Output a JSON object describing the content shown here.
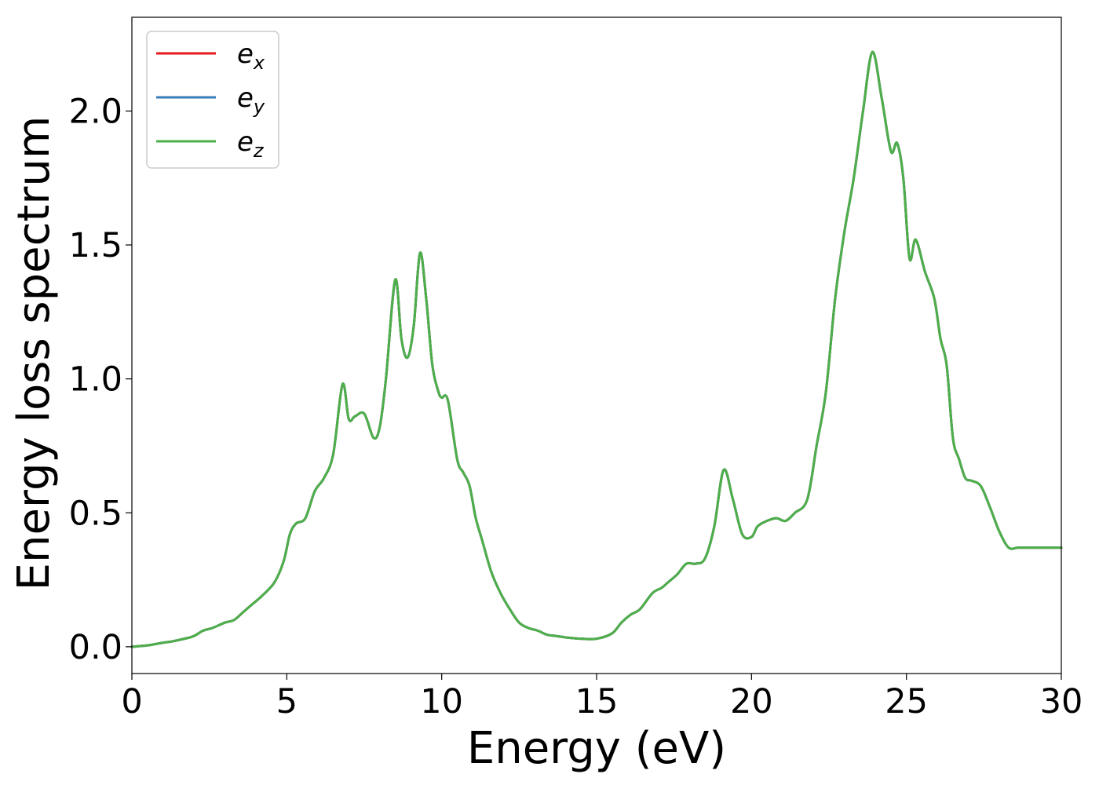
{
  "chart_data": {
    "type": "line",
    "title": "",
    "xlabel": "Energy (eV)",
    "ylabel": "Energy loss spectrum",
    "xlim": [
      0,
      30
    ],
    "ylim": [
      -0.1,
      2.35
    ],
    "xticks": [
      0,
      5,
      10,
      15,
      20,
      25,
      30
    ],
    "xtick_labels": [
      "0",
      "5",
      "10",
      "15",
      "20",
      "25",
      "30"
    ],
    "yticks": [
      0.0,
      0.5,
      1.0,
      1.5,
      2.0
    ],
    "ytick_labels": [
      "0.0",
      "0.5",
      "1.0",
      "1.5",
      "2.0"
    ],
    "grid": false,
    "legend_position": "top-left",
    "x": [
      0,
      0.5,
      1.0,
      1.3,
      1.7,
      2.0,
      2.3,
      2.6,
      3.0,
      3.3,
      3.6,
      3.9,
      4.2,
      4.6,
      4.9,
      5.1,
      5.3,
      5.6,
      5.9,
      6.2,
      6.5,
      6.8,
      7.0,
      7.2,
      7.5,
      7.8,
      8.0,
      8.2,
      8.5,
      8.7,
      8.9,
      9.1,
      9.3,
      9.5,
      9.7,
      9.9,
      10.0,
      10.2,
      10.5,
      10.7,
      10.9,
      11.1,
      11.3,
      11.6,
      11.9,
      12.2,
      12.5,
      12.8,
      13.1,
      13.4,
      13.7,
      14.0,
      14.5,
      15.0,
      15.5,
      15.8,
      16.1,
      16.4,
      16.8,
      17.1,
      17.3,
      17.6,
      17.9,
      18.2,
      18.5,
      18.8,
      19.1,
      19.4,
      19.7,
      20.0,
      20.2,
      20.5,
      20.8,
      21.1,
      21.4,
      21.8,
      22.1,
      22.4,
      22.7,
      23.0,
      23.3,
      23.6,
      23.9,
      24.2,
      24.5,
      24.7,
      24.9,
      25.1,
      25.3,
      25.6,
      25.9,
      26.1,
      26.3,
      26.5,
      26.7,
      26.9,
      27.1,
      27.4,
      27.7,
      28.0,
      28.3,
      28.6,
      28.9,
      29.2,
      29.5,
      29.8,
      30.0
    ],
    "series": [
      {
        "name": "e_x",
        "color": "#e41a1c"
      },
      {
        "name": "e_y",
        "color": "#377eb8"
      },
      {
        "name": "e_z",
        "color": "#4daf4a"
      }
    ],
    "y": [
      0.0,
      0.005,
      0.015,
      0.02,
      0.03,
      0.04,
      0.06,
      0.07,
      0.09,
      0.1,
      0.13,
      0.16,
      0.19,
      0.24,
      0.32,
      0.42,
      0.46,
      0.48,
      0.58,
      0.63,
      0.72,
      0.98,
      0.85,
      0.86,
      0.87,
      0.78,
      0.82,
      1.0,
      1.37,
      1.15,
      1.08,
      1.2,
      1.47,
      1.3,
      1.05,
      0.95,
      0.93,
      0.92,
      0.7,
      0.65,
      0.6,
      0.48,
      0.4,
      0.28,
      0.2,
      0.14,
      0.09,
      0.07,
      0.06,
      0.045,
      0.04,
      0.035,
      0.03,
      0.03,
      0.05,
      0.09,
      0.12,
      0.14,
      0.2,
      0.22,
      0.24,
      0.27,
      0.31,
      0.31,
      0.33,
      0.45,
      0.66,
      0.55,
      0.42,
      0.41,
      0.45,
      0.47,
      0.48,
      0.47,
      0.5,
      0.55,
      0.75,
      0.95,
      1.3,
      1.55,
      1.75,
      2.0,
      2.22,
      2.05,
      1.85,
      1.88,
      1.75,
      1.45,
      1.52,
      1.4,
      1.3,
      1.15,
      1.05,
      0.78,
      0.7,
      0.63,
      0.62,
      0.6,
      0.52,
      0.43,
      0.37,
      0.37,
      0.37,
      0.37,
      0.37,
      0.37,
      0.37
    ],
    "legend_labels": [
      {
        "base": "e",
        "sub": "x"
      },
      {
        "base": "e",
        "sub": "y"
      },
      {
        "base": "e",
        "sub": "z"
      }
    ]
  }
}
